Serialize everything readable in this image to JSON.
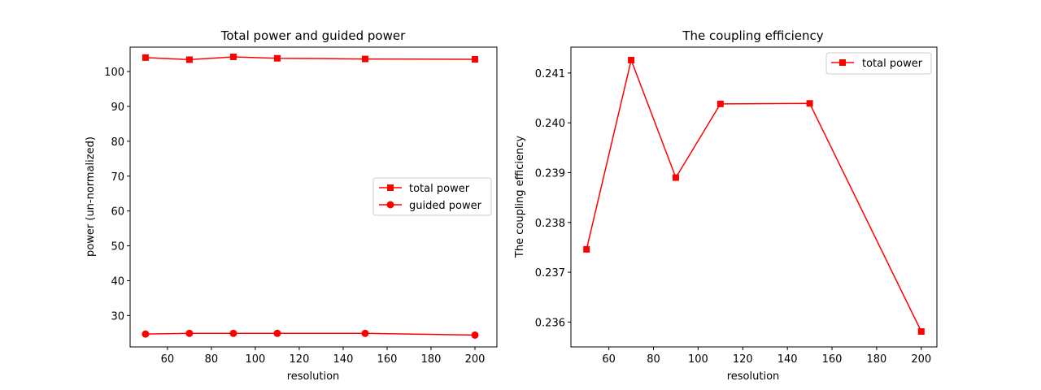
{
  "chart_data": [
    {
      "type": "line",
      "title": "Total power and guided power",
      "xlabel": "resolution",
      "ylabel": "power (un-normalized)",
      "x": [
        50,
        70,
        90,
        110,
        150,
        200
      ],
      "xlim": [
        43,
        210
      ],
      "ylim": [
        21,
        107
      ],
      "xticks": [
        "60",
        "80",
        "100",
        "120",
        "140",
        "160",
        "180",
        "200"
      ],
      "yticks": [
        "30",
        "40",
        "50",
        "60",
        "70",
        "80",
        "90",
        "100"
      ],
      "legend_position": "center-right",
      "grid": false,
      "series": [
        {
          "name": "total power",
          "marker": "square",
          "color": "#ff0000",
          "values": [
            104.0,
            103.4,
            104.2,
            103.8,
            103.6,
            103.5
          ]
        },
        {
          "name": "guided power",
          "marker": "circle",
          "color": "#ff0000",
          "values": [
            24.7,
            24.9,
            24.9,
            24.9,
            24.9,
            24.4
          ]
        }
      ]
    },
    {
      "type": "line",
      "title": "The coupling efficiency",
      "xlabel": "resolution",
      "ylabel": "The coupling efficiency",
      "x": [
        50,
        70,
        90,
        110,
        150,
        200
      ],
      "xlim": [
        43,
        207
      ],
      "ylim": [
        0.2355,
        0.24152
      ],
      "xticks": [
        "60",
        "80",
        "100",
        "120",
        "140",
        "160",
        "180",
        "200"
      ],
      "yticks": [
        "0.236",
        "0.237",
        "0.238",
        "0.239",
        "0.240",
        "0.241"
      ],
      "legend_position": "upper-right",
      "grid": false,
      "series": [
        {
          "name": "total power",
          "marker": "square",
          "color": "#ff0000",
          "values": [
            0.23746,
            0.24126,
            0.2389,
            0.24038,
            0.24039,
            0.23581
          ]
        }
      ]
    }
  ]
}
